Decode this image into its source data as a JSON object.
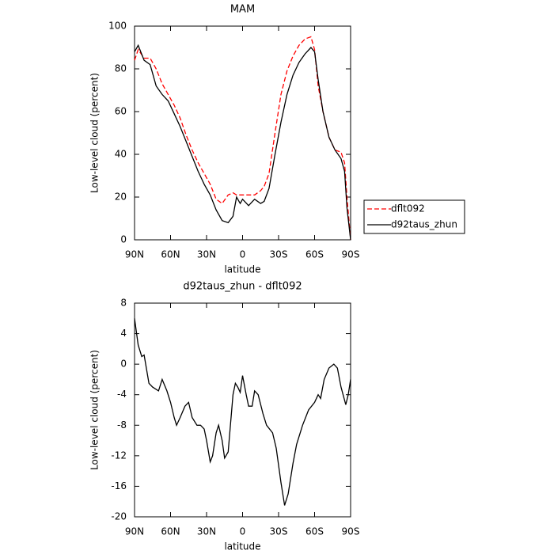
{
  "chart_data": [
    {
      "type": "line",
      "title": "MAM",
      "xlabel": "latitude",
      "ylabel": "Low-level cloud (percent)",
      "x": [
        90,
        87,
        82,
        77,
        72,
        67,
        62,
        57,
        52,
        47,
        42,
        37,
        32,
        27,
        22,
        17,
        12,
        8,
        5,
        2,
        0,
        -5,
        -10,
        -15,
        -18,
        -22,
        -27,
        -32,
        -37,
        -42,
        -47,
        -52,
        -57,
        -60,
        -63,
        -67,
        -72,
        -77,
        -82,
        -85,
        -87,
        -90
      ],
      "series": [
        {
          "name": "dflt092",
          "color": "#ff0000",
          "dash": true,
          "values": [
            84,
            89,
            85,
            85,
            80,
            73,
            68,
            63,
            57,
            49,
            42,
            36,
            31,
            26,
            19,
            17,
            21,
            22,
            21,
            21,
            21,
            21,
            21,
            23,
            25,
            31,
            50,
            68,
            79,
            86,
            91,
            94,
            95,
            89,
            72,
            60,
            48,
            42,
            41,
            36,
            20,
            0
          ]
        },
        {
          "name": "d92taus_zhun",
          "color": "#000000",
          "dash": false,
          "values": [
            88,
            91,
            84,
            82,
            72,
            68,
            65,
            59,
            53,
            46,
            39,
            32,
            26,
            21,
            14,
            9,
            8,
            11,
            20,
            17,
            19,
            16,
            19,
            17,
            18,
            24,
            40,
            55,
            68,
            77,
            83,
            87,
            90,
            88,
            75,
            60,
            48,
            42,
            38,
            32,
            15,
            0
          ]
        }
      ],
      "xlim": [
        90,
        -90
      ],
      "xticks": [
        {
          "value": 90,
          "label": "90N"
        },
        {
          "value": 60,
          "label": "60N"
        },
        {
          "value": 30,
          "label": "30N"
        },
        0,
        {
          "value": -30,
          "label": "30S"
        },
        {
          "value": -60,
          "label": "60S"
        },
        {
          "value": -90,
          "label": "90S"
        }
      ],
      "ylim": [
        0,
        100
      ],
      "yticks": [
        0,
        20,
        40,
        60,
        80,
        100
      ],
      "legend": "outside-right"
    },
    {
      "type": "line",
      "title": "d92taus_zhun - dflt092",
      "xlabel": "latitude",
      "ylabel": "Low-level cloud (percent)",
      "x": [
        90,
        87,
        84,
        82,
        78,
        75,
        70,
        67,
        63,
        60,
        57,
        55,
        52,
        48,
        45,
        42,
        38,
        35,
        32,
        30,
        27,
        25,
        22,
        20,
        17,
        15,
        12,
        8,
        6,
        4,
        2,
        0,
        -3,
        -5,
        -8,
        -10,
        -13,
        -17,
        -20,
        -25,
        -28,
        -32,
        -35,
        -38,
        -42,
        -45,
        -50,
        -55,
        -60,
        -63,
        -65,
        -68,
        -72,
        -76,
        -79,
        -82,
        -86,
        -88,
        -90
      ],
      "series": [
        {
          "color": "#000000",
          "dash": false,
          "values": [
            6,
            2.5,
            1,
            1.2,
            -2.5,
            -3,
            -3.5,
            -2,
            -3.5,
            -5,
            -7,
            -8,
            -7,
            -5.5,
            -5,
            -7,
            -8,
            -8,
            -8.5,
            -10,
            -12.8,
            -12,
            -9,
            -8,
            -10,
            -12.3,
            -11.5,
            -4,
            -2.5,
            -3,
            -3.7,
            -1.5,
            -4,
            -5.5,
            -5.5,
            -3.5,
            -4,
            -6.5,
            -8,
            -9,
            -11,
            -15.5,
            -18.5,
            -17,
            -13,
            -10.5,
            -8,
            -6,
            -5,
            -4,
            -4.5,
            -2,
            -0.5,
            0,
            -0.5,
            -3,
            -5.3,
            -4,
            -2
          ]
        }
      ],
      "xlim": [
        90,
        -90
      ],
      "xticks": [
        {
          "value": 90,
          "label": "90N"
        },
        {
          "value": 60,
          "label": "60N"
        },
        {
          "value": 30,
          "label": "30N"
        },
        0,
        {
          "value": -30,
          "label": "30S"
        },
        {
          "value": -60,
          "label": "60S"
        },
        {
          "value": -90,
          "label": "90S"
        }
      ],
      "ylim": [
        -20,
        8
      ],
      "yticks": [
        -20,
        -16,
        -12,
        -8,
        -4,
        0,
        4,
        8
      ]
    }
  ]
}
